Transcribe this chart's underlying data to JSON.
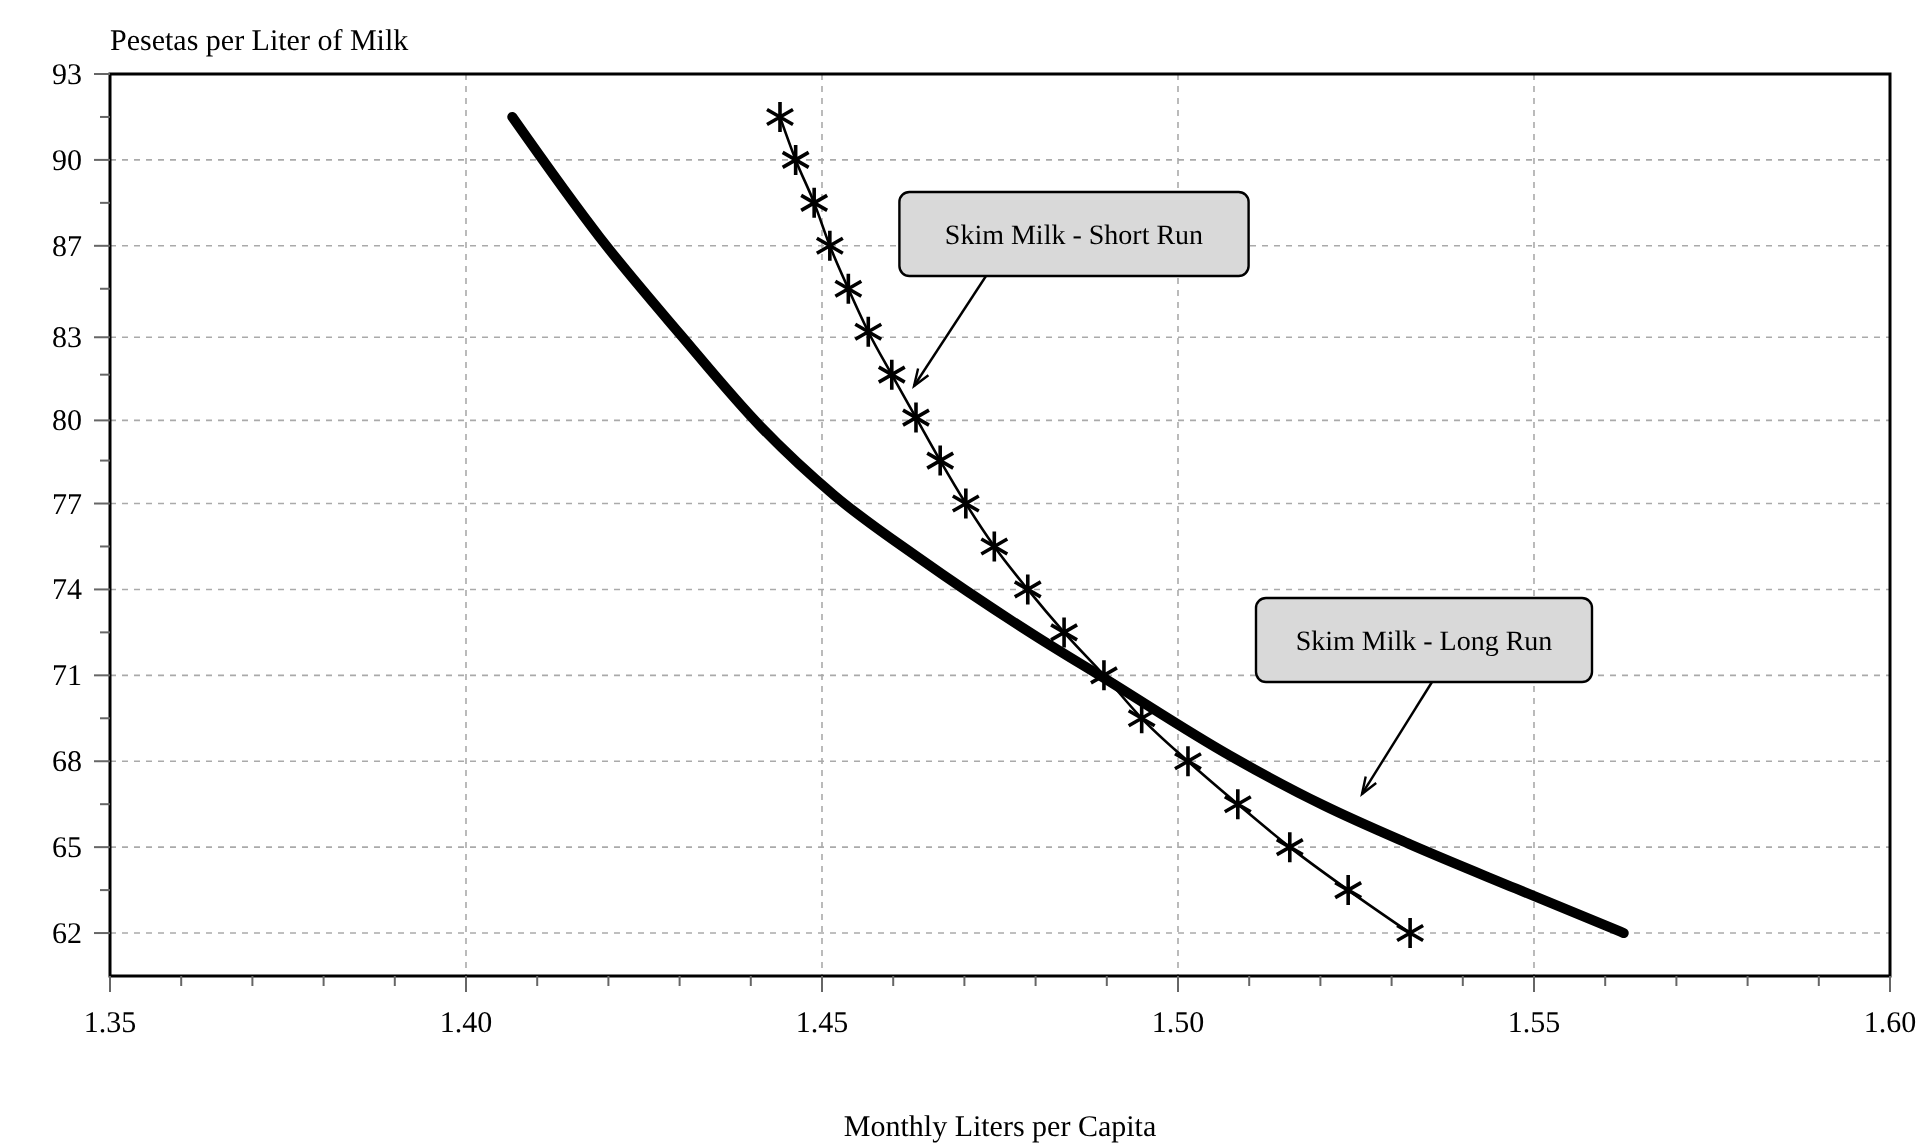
{
  "chart_data": {
    "type": "line",
    "xlabel": "Monthly Liters per Capita",
    "ylabel": "Pesetas per Liter of Milk",
    "xlim": [
      1.35,
      1.6
    ],
    "xticks": [
      1.35,
      {
        "value": 1.36,
        "label": null
      },
      {
        "value": 1.37,
        "label": null
      },
      {
        "value": 1.38,
        "label": null
      },
      {
        "value": 1.39,
        "label": null
      },
      {
        "value": 1.4,
        "label": "1.40"
      },
      {
        "value": 1.41,
        "label": null
      },
      {
        "value": 1.42,
        "label": null
      },
      {
        "value": 1.43,
        "label": null
      },
      {
        "value": 1.44,
        "label": null
      },
      1.45,
      {
        "value": 1.46,
        "label": null
      },
      {
        "value": 1.47,
        "label": null
      },
      {
        "value": 1.48,
        "label": null
      },
      {
        "value": 1.49,
        "label": null
      },
      {
        "value": 1.5,
        "label": "1.50"
      },
      {
        "value": 1.51,
        "label": null
      },
      {
        "value": 1.52,
        "label": null
      },
      {
        "value": 1.53,
        "label": null
      },
      {
        "value": 1.54,
        "label": null
      },
      1.55,
      {
        "value": 1.56,
        "label": null
      },
      {
        "value": 1.57,
        "label": null
      },
      {
        "value": 1.58,
        "label": null
      },
      {
        "value": 1.59,
        "label": null
      },
      {
        "value": 1.6,
        "label": "1.60"
      }
    ],
    "ylim": [
      60.45,
      93
    ],
    "yticks": [
      62,
      {
        "value": 63.55,
        "label": null
      },
      {
        "value": 65.1,
        "label": "65"
      },
      {
        "value": 66.65,
        "label": null
      },
      {
        "value": 68.2,
        "label": "68"
      },
      {
        "value": 69.75,
        "label": null
      },
      {
        "value": 71.3,
        "label": "71"
      },
      {
        "value": 72.85,
        "label": null
      },
      {
        "value": 74.4,
        "label": "74"
      },
      {
        "value": 75.95,
        "label": null
      },
      {
        "value": 77.5,
        "label": "77"
      },
      {
        "value": 79.05,
        "label": null
      },
      {
        "value": 80.5,
        "label": "80"
      },
      {
        "value": 82.15,
        "label": null
      },
      {
        "value": 83.5,
        "label": "83"
      },
      {
        "value": 85.25,
        "label": null
      },
      {
        "value": 86.8,
        "label": "87"
      },
      {
        "value": 88.35,
        "label": null
      },
      {
        "value": 89.9,
        "label": "90"
      },
      {
        "value": 91.45,
        "label": null
      },
      93
    ],
    "grid": true,
    "line_style": "solid",
    "series": [
      {
        "color": "#000000",
        "marker": "none",
        "x": [
          1.4065,
          1.4188,
          1.4301,
          1.4413,
          1.4517,
          1.4638,
          1.4801,
          1.4896,
          1.5073,
          1.5205,
          1.5326,
          1.5475,
          1.5626
        ],
        "values": [
          91.45,
          87.1,
          83.6,
          80.3,
          77.8,
          75.5,
          72.7,
          71.2,
          68.4,
          66.6,
          65.2,
          63.6,
          62
        ]
      },
      {
        "color": "#000000",
        "marker": "cross",
        "x": [
          1.4441,
          1.4463,
          1.4489,
          1.4511,
          1.4537,
          1.4565,
          1.4598,
          1.4632,
          1.4666,
          1.4702,
          1.4742,
          1.4789,
          1.484,
          1.4896,
          1.4949,
          1.5014,
          1.5084,
          1.5157,
          1.5239,
          1.5326
        ],
        "values": [
          91.45,
          89.9,
          88.35,
          86.8,
          85.25,
          83.7,
          82.15,
          80.6,
          79.05,
          77.5,
          75.95,
          74.4,
          72.85,
          71.3,
          69.75,
          68.2,
          66.65,
          65.1,
          63.55,
          62
        ]
      }
    ],
    "annotations": [
      "Skim Milk - Short Run",
      "Skim Milk - Long Run"
    ]
  }
}
